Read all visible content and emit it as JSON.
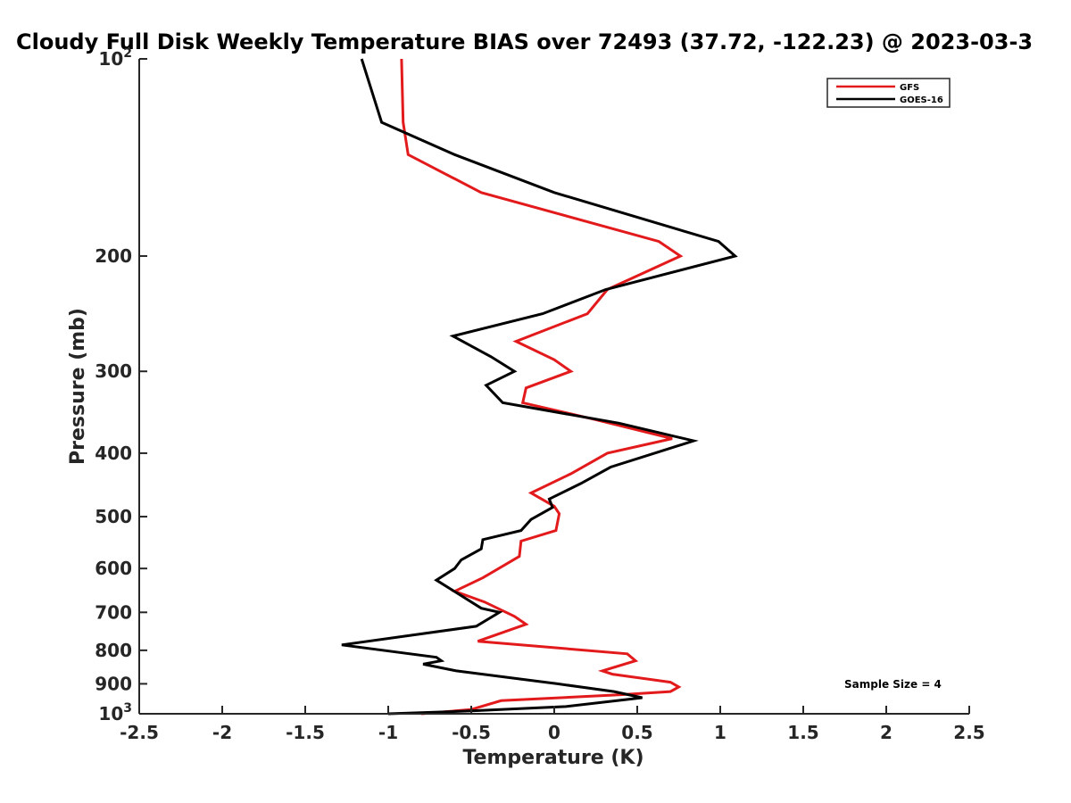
{
  "chart_data": {
    "type": "line",
    "title": "Cloudy Full Disk Weekly Temperature BIAS over 72493 (37.72, -122.23) @ 2023-03-3",
    "xlabel": "Temperature (K)",
    "ylabel": "Pressure (mb)",
    "xlim": [
      -2.5,
      2.5
    ],
    "ylim": [
      1000,
      100
    ],
    "yscale": "log",
    "y_reversed": true,
    "grid": false,
    "legend_position": "top-right",
    "x_ticks": [
      -2.5,
      -2,
      -1.5,
      -1,
      -0.5,
      0,
      0.5,
      1,
      1.5,
      2,
      2.5
    ],
    "x_tick_labels": [
      "-2.5",
      "-2",
      "-1.5",
      "-1",
      "-0.5",
      "0",
      "0.5",
      "1",
      "1.5",
      "2",
      "2.5"
    ],
    "y_ticks": [
      100,
      200,
      300,
      400,
      500,
      600,
      700,
      800,
      900,
      1000
    ],
    "y_tick_labels": [
      {
        "base": "10",
        "exp": "2"
      },
      {
        "base": "200",
        "exp": ""
      },
      {
        "base": "300",
        "exp": ""
      },
      {
        "base": "400",
        "exp": ""
      },
      {
        "base": "500",
        "exp": ""
      },
      {
        "base": "600",
        "exp": ""
      },
      {
        "base": "700",
        "exp": ""
      },
      {
        "base": "800",
        "exp": ""
      },
      {
        "base": "900",
        "exp": ""
      },
      {
        "base": "10",
        "exp": "3"
      }
    ],
    "annotation": "Sample Size = 4",
    "series": [
      {
        "name": "GFS",
        "color": "#e31a1c",
        "points": [
          {
            "x": -0.92,
            "y": 100
          },
          {
            "x": -0.91,
            "y": 125
          },
          {
            "x": -0.88,
            "y": 140
          },
          {
            "x": -0.44,
            "y": 160
          },
          {
            "x": 0.63,
            "y": 190
          },
          {
            "x": 0.76,
            "y": 200
          },
          {
            "x": 0.32,
            "y": 225
          },
          {
            "x": 0.2,
            "y": 245
          },
          {
            "x": -0.23,
            "y": 270
          },
          {
            "x": 0.0,
            "y": 288
          },
          {
            "x": 0.1,
            "y": 300
          },
          {
            "x": -0.17,
            "y": 318
          },
          {
            "x": -0.19,
            "y": 335
          },
          {
            "x": 0.24,
            "y": 355
          },
          {
            "x": 0.71,
            "y": 380
          },
          {
            "x": 0.32,
            "y": 400
          },
          {
            "x": 0.1,
            "y": 430
          },
          {
            "x": -0.14,
            "y": 460
          },
          {
            "x": 0.0,
            "y": 482
          },
          {
            "x": 0.03,
            "y": 495
          },
          {
            "x": 0.01,
            "y": 525
          },
          {
            "x": -0.2,
            "y": 545
          },
          {
            "x": -0.21,
            "y": 575
          },
          {
            "x": -0.43,
            "y": 620
          },
          {
            "x": -0.6,
            "y": 650
          },
          {
            "x": -0.42,
            "y": 675
          },
          {
            "x": -0.24,
            "y": 710
          },
          {
            "x": -0.17,
            "y": 730
          },
          {
            "x": -0.46,
            "y": 775
          },
          {
            "x": 0.44,
            "y": 810
          },
          {
            "x": 0.49,
            "y": 830
          },
          {
            "x": 0.29,
            "y": 860
          },
          {
            "x": 0.35,
            "y": 870
          },
          {
            "x": 0.7,
            "y": 895
          },
          {
            "x": 0.75,
            "y": 910
          },
          {
            "x": 0.7,
            "y": 925
          },
          {
            "x": 0.4,
            "y": 935
          },
          {
            "x": -0.32,
            "y": 955
          },
          {
            "x": -0.5,
            "y": 985
          },
          {
            "x": -0.8,
            "y": 1000
          }
        ]
      },
      {
        "name": "GOES-16",
        "color": "#000000",
        "points": [
          {
            "x": -1.16,
            "y": 100
          },
          {
            "x": -1.04,
            "y": 125
          },
          {
            "x": -0.6,
            "y": 140
          },
          {
            "x": 0.0,
            "y": 160
          },
          {
            "x": 0.99,
            "y": 190
          },
          {
            "x": 1.09,
            "y": 200
          },
          {
            "x": 0.31,
            "y": 225
          },
          {
            "x": -0.07,
            "y": 245
          },
          {
            "x": -0.61,
            "y": 265
          },
          {
            "x": -0.38,
            "y": 285
          },
          {
            "x": -0.24,
            "y": 300
          },
          {
            "x": -0.41,
            "y": 315
          },
          {
            "x": -0.31,
            "y": 335
          },
          {
            "x": 0.39,
            "y": 360
          },
          {
            "x": 0.84,
            "y": 383
          },
          {
            "x": 0.34,
            "y": 420
          },
          {
            "x": 0.16,
            "y": 445
          },
          {
            "x": -0.03,
            "y": 470
          },
          {
            "x": -0.01,
            "y": 484
          },
          {
            "x": -0.14,
            "y": 505
          },
          {
            "x": -0.2,
            "y": 525
          },
          {
            "x": -0.43,
            "y": 542
          },
          {
            "x": -0.44,
            "y": 560
          },
          {
            "x": -0.56,
            "y": 582
          },
          {
            "x": -0.6,
            "y": 600
          },
          {
            "x": -0.71,
            "y": 625
          },
          {
            "x": -0.44,
            "y": 690
          },
          {
            "x": -0.33,
            "y": 700
          },
          {
            "x": -0.47,
            "y": 735
          },
          {
            "x": -1.28,
            "y": 785
          },
          {
            "x": -0.71,
            "y": 820
          },
          {
            "x": -0.68,
            "y": 830
          },
          {
            "x": -0.79,
            "y": 840
          },
          {
            "x": -0.59,
            "y": 860
          },
          {
            "x": 0.02,
            "y": 900
          },
          {
            "x": 0.36,
            "y": 925
          },
          {
            "x": 0.53,
            "y": 945
          },
          {
            "x": 0.07,
            "y": 975
          },
          {
            "x": -0.5,
            "y": 990
          },
          {
            "x": -1.0,
            "y": 1000
          }
        ]
      }
    ]
  }
}
